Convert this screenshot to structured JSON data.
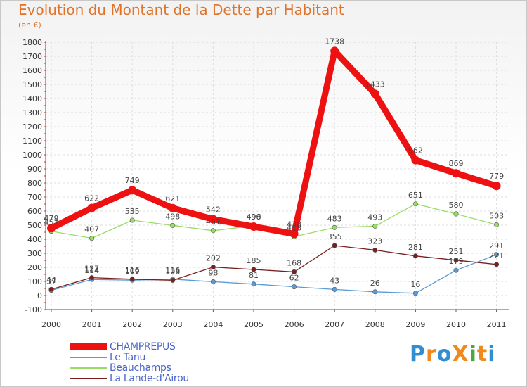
{
  "title": "Evolution du Montant de la Dette par Habitant",
  "subtitle": "(en €)",
  "logo": {
    "text": "ProXiti",
    "colors": [
      "#2f8fd0",
      "#f08a1c",
      "#2f8fd0",
      "#f08a1c",
      "#4aa83c",
      "#f08a1c",
      "#2f8fd0"
    ]
  },
  "chart_data": {
    "type": "line",
    "x": [
      "2000",
      "2001",
      "2002",
      "2003",
      "2004",
      "2005",
      "2006",
      "2007",
      "2008",
      "2009",
      "2010",
      "2011"
    ],
    "ylim": [
      -100,
      1800
    ],
    "yticks": [
      "-100",
      "0",
      "100",
      "200",
      "300",
      "400",
      "500",
      "600",
      "700",
      "800",
      "900",
      "1000",
      "1100",
      "1200",
      "1300",
      "1400",
      "1500",
      "1600",
      "1700",
      "1800"
    ],
    "legend_position": "bottom-left",
    "series": [
      {
        "name": "CHAMPREPUS",
        "color": "#ee1111",
        "values": [
          479,
          622,
          749,
          621,
          542,
          490,
          438,
          1738,
          1433,
          962,
          869,
          779
        ]
      },
      {
        "name": "Le Tanu",
        "color": "#5b9bd5",
        "values": [
          37,
          114,
          109,
          116,
          98,
          81,
          62,
          43,
          26,
          16,
          179,
          291
        ]
      },
      {
        "name": "Beauchamps",
        "color": "#99dd66",
        "values": [
          457,
          407,
          535,
          498,
          461,
          496,
          418,
          483,
          493,
          651,
          580,
          503
        ]
      },
      {
        "name": "La Lande-d'Airou",
        "color": "#7a1f1f",
        "values": [
          44,
          127,
          116,
          108,
          202,
          185,
          168,
          355,
          323,
          281,
          251,
          221
        ]
      }
    ]
  }
}
